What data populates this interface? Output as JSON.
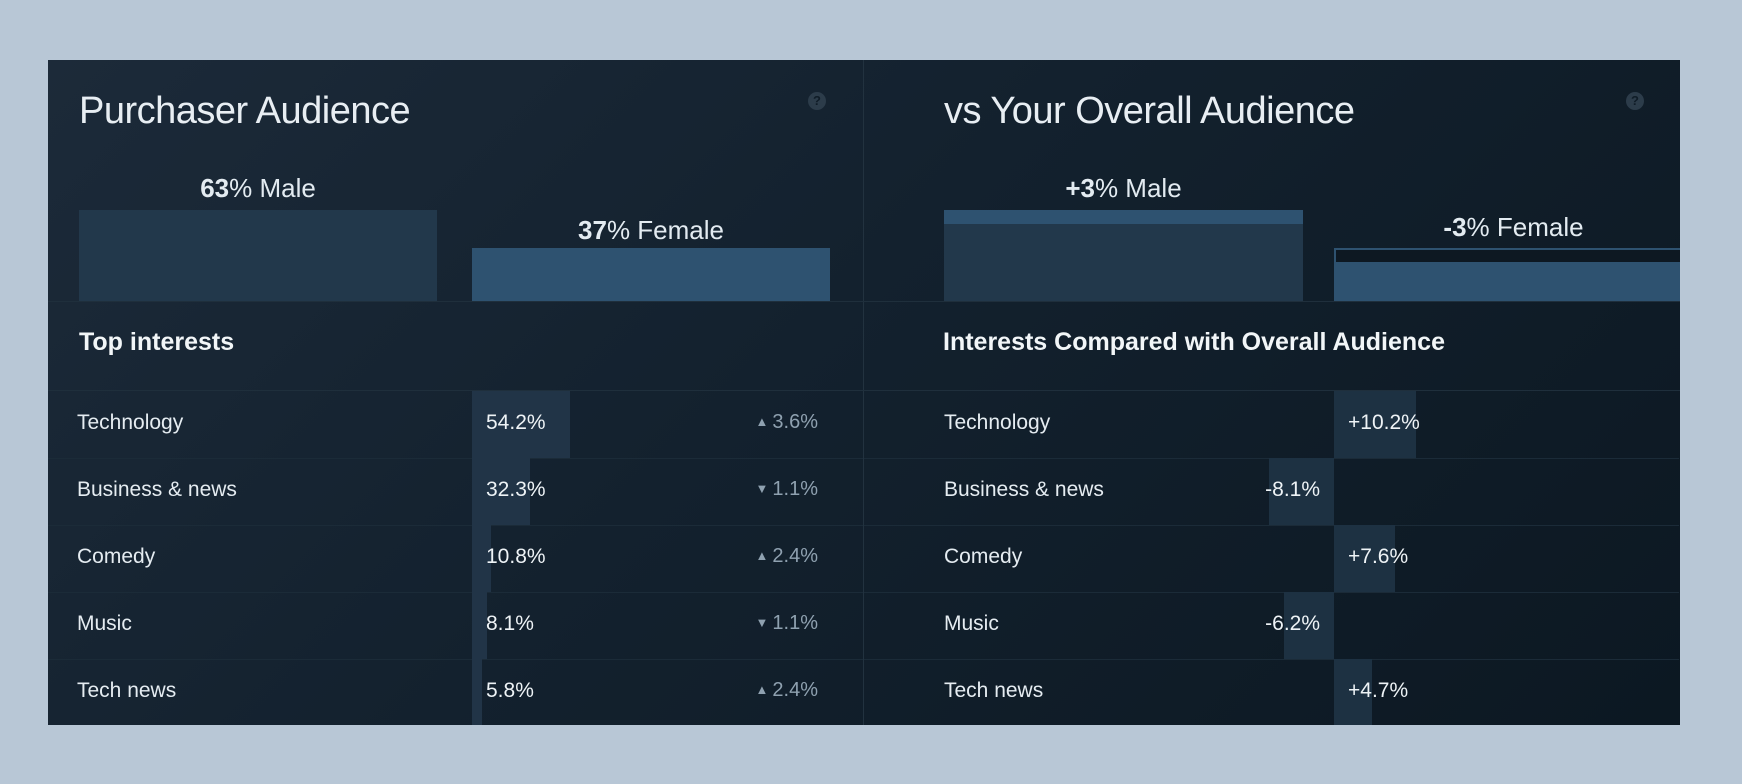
{
  "left_panel": {
    "title": "Purchaser Audience",
    "help_icon": "question-icon",
    "male": {
      "value": "63",
      "label": "% Male",
      "percent": 63
    },
    "female": {
      "value": "37",
      "label": "% Female",
      "percent": 37
    },
    "section_heading": "Top interests",
    "rows": [
      {
        "category": "Technology",
        "value": "54.2%",
        "bar_fraction": 0.542,
        "change": "3.6%",
        "direction": "up"
      },
      {
        "category": "Business & news",
        "value": "32.3%",
        "bar_fraction": 0.323,
        "change": "1.1%",
        "direction": "down"
      },
      {
        "category": "Comedy",
        "value": "10.8%",
        "bar_fraction": 0.108,
        "change": "2.4%",
        "direction": "up"
      },
      {
        "category": "Music",
        "value": "8.1%",
        "bar_fraction": 0.081,
        "change": "1.1%",
        "direction": "down"
      },
      {
        "category": "Tech news",
        "value": "5.8%",
        "bar_fraction": 0.058,
        "change": "2.4%",
        "direction": "up"
      }
    ]
  },
  "right_panel": {
    "title": "vs Your Overall Audience",
    "help_icon": "question-icon",
    "male": {
      "value": "+3",
      "label": "% Male",
      "delta": 3
    },
    "female": {
      "value": "-3",
      "label": "% Female",
      "delta": -3
    },
    "section_heading": "Interests Compared with Overall Audience",
    "rows": [
      {
        "category": "Technology",
        "value": "+10.2%",
        "delta": 10.2
      },
      {
        "category": "Business & news",
        "value": "-8.1%",
        "delta": -8.1
      },
      {
        "category": "Comedy",
        "value": "+7.6%",
        "delta": 7.6
      },
      {
        "category": "Music",
        "value": "-6.2%",
        "delta": -6.2
      },
      {
        "category": "Tech news",
        "value": "+4.7%",
        "delta": 4.7
      }
    ]
  },
  "colors": {
    "background": "#b8c7d6",
    "card": "#13212e",
    "male_bar": "#22384b",
    "female_bar": "#2e5270",
    "interest_bar": "#213447",
    "change_text": "#8fa1b0"
  }
}
